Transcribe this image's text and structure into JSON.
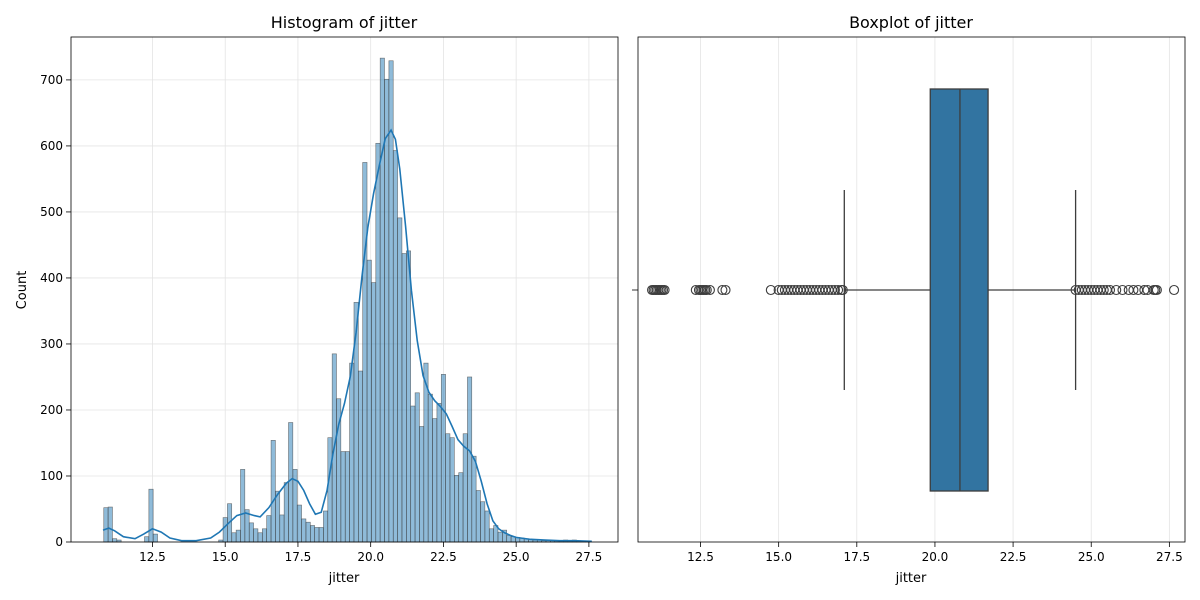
{
  "chart_data": [
    {
      "type": "bar",
      "title": "Histogram of jitter",
      "xlabel": "jitter",
      "ylabel": "Count",
      "xlim": [
        9.7,
        28.5
      ],
      "ylim": [
        0,
        765
      ],
      "xticks": [
        "12.5",
        "15.0",
        "17.5",
        "20.0",
        "22.5",
        "25.0",
        "27.5"
      ],
      "yticks": [
        "0",
        "100",
        "200",
        "300",
        "400",
        "500",
        "600",
        "700"
      ],
      "grid": true,
      "bar_color": "#1f77b4",
      "bin_width": 0.148,
      "bins": [
        {
          "x": 10.9,
          "count": 52
        },
        {
          "x": 11.05,
          "count": 53
        },
        {
          "x": 11.2,
          "count": 5
        },
        {
          "x": 11.35,
          "count": 3
        },
        {
          "x": 12.3,
          "count": 8
        },
        {
          "x": 12.45,
          "count": 80
        },
        {
          "x": 12.6,
          "count": 12
        },
        {
          "x": 14.85,
          "count": 3
        },
        {
          "x": 15.0,
          "count": 37
        },
        {
          "x": 15.15,
          "count": 58
        },
        {
          "x": 15.3,
          "count": 14
        },
        {
          "x": 15.45,
          "count": 18
        },
        {
          "x": 15.6,
          "count": 110
        },
        {
          "x": 15.75,
          "count": 49
        },
        {
          "x": 15.9,
          "count": 29
        },
        {
          "x": 16.05,
          "count": 20
        },
        {
          "x": 16.2,
          "count": 14
        },
        {
          "x": 16.35,
          "count": 20
        },
        {
          "x": 16.5,
          "count": 40
        },
        {
          "x": 16.65,
          "count": 154
        },
        {
          "x": 16.8,
          "count": 77
        },
        {
          "x": 16.95,
          "count": 41
        },
        {
          "x": 17.1,
          "count": 90
        },
        {
          "x": 17.25,
          "count": 181
        },
        {
          "x": 17.4,
          "count": 110
        },
        {
          "x": 17.55,
          "count": 56
        },
        {
          "x": 17.7,
          "count": 35
        },
        {
          "x": 17.85,
          "count": 30
        },
        {
          "x": 18.0,
          "count": 25
        },
        {
          "x": 18.15,
          "count": 22
        },
        {
          "x": 18.3,
          "count": 22
        },
        {
          "x": 18.45,
          "count": 47
        },
        {
          "x": 18.6,
          "count": 158
        },
        {
          "x": 18.75,
          "count": 285
        },
        {
          "x": 18.9,
          "count": 217
        },
        {
          "x": 19.05,
          "count": 137
        },
        {
          "x": 19.2,
          "count": 137
        },
        {
          "x": 19.35,
          "count": 271
        },
        {
          "x": 19.5,
          "count": 363
        },
        {
          "x": 19.65,
          "count": 259
        },
        {
          "x": 19.8,
          "count": 575
        },
        {
          "x": 19.95,
          "count": 427
        },
        {
          "x": 20.1,
          "count": 393
        },
        {
          "x": 20.25,
          "count": 604
        },
        {
          "x": 20.4,
          "count": 733
        },
        {
          "x": 20.55,
          "count": 701
        },
        {
          "x": 20.7,
          "count": 729
        },
        {
          "x": 20.85,
          "count": 593
        },
        {
          "x": 21.0,
          "count": 491
        },
        {
          "x": 21.15,
          "count": 437
        },
        {
          "x": 21.3,
          "count": 441
        },
        {
          "x": 21.45,
          "count": 206
        },
        {
          "x": 21.6,
          "count": 226
        },
        {
          "x": 21.75,
          "count": 175
        },
        {
          "x": 21.9,
          "count": 271
        },
        {
          "x": 22.05,
          "count": 224
        },
        {
          "x": 22.2,
          "count": 187
        },
        {
          "x": 22.35,
          "count": 210
        },
        {
          "x": 22.5,
          "count": 254
        },
        {
          "x": 22.65,
          "count": 164
        },
        {
          "x": 22.8,
          "count": 158
        },
        {
          "x": 22.95,
          "count": 101
        },
        {
          "x": 23.1,
          "count": 105
        },
        {
          "x": 23.25,
          "count": 164
        },
        {
          "x": 23.4,
          "count": 250
        },
        {
          "x": 23.55,
          "count": 130
        },
        {
          "x": 23.7,
          "count": 78
        },
        {
          "x": 23.85,
          "count": 61
        },
        {
          "x": 24.0,
          "count": 47
        },
        {
          "x": 24.15,
          "count": 20
        },
        {
          "x": 24.3,
          "count": 25
        },
        {
          "x": 24.45,
          "count": 15
        },
        {
          "x": 24.6,
          "count": 18
        },
        {
          "x": 24.75,
          "count": 10
        },
        {
          "x": 24.9,
          "count": 8
        },
        {
          "x": 25.05,
          "count": 7
        },
        {
          "x": 25.2,
          "count": 6
        },
        {
          "x": 25.35,
          "count": 5
        },
        {
          "x": 25.5,
          "count": 4
        },
        {
          "x": 25.65,
          "count": 3
        },
        {
          "x": 25.8,
          "count": 3
        },
        {
          "x": 25.95,
          "count": 2
        },
        {
          "x": 26.1,
          "count": 2
        },
        {
          "x": 26.25,
          "count": 2
        },
        {
          "x": 26.4,
          "count": 2
        },
        {
          "x": 26.55,
          "count": 2
        },
        {
          "x": 26.7,
          "count": 3
        },
        {
          "x": 26.85,
          "count": 2
        },
        {
          "x": 27.0,
          "count": 3
        },
        {
          "x": 27.15,
          "count": 2
        },
        {
          "x": 27.3,
          "count": 1
        },
        {
          "x": 27.45,
          "count": 1
        }
      ],
      "kde": [
        {
          "x": 10.8,
          "y": 18
        },
        {
          "x": 11.0,
          "y": 21
        },
        {
          "x": 11.2,
          "y": 17
        },
        {
          "x": 11.5,
          "y": 8
        },
        {
          "x": 11.9,
          "y": 5
        },
        {
          "x": 12.2,
          "y": 12
        },
        {
          "x": 12.5,
          "y": 20
        },
        {
          "x": 12.8,
          "y": 15
        },
        {
          "x": 13.1,
          "y": 6
        },
        {
          "x": 13.5,
          "y": 2
        },
        {
          "x": 14.0,
          "y": 2
        },
        {
          "x": 14.5,
          "y": 6
        },
        {
          "x": 14.8,
          "y": 15
        },
        {
          "x": 15.1,
          "y": 28
        },
        {
          "x": 15.4,
          "y": 40
        },
        {
          "x": 15.7,
          "y": 44
        },
        {
          "x": 16.0,
          "y": 40
        },
        {
          "x": 16.2,
          "y": 38
        },
        {
          "x": 16.5,
          "y": 52
        },
        {
          "x": 16.8,
          "y": 72
        },
        {
          "x": 17.1,
          "y": 89
        },
        {
          "x": 17.3,
          "y": 96
        },
        {
          "x": 17.5,
          "y": 92
        },
        {
          "x": 17.7,
          "y": 78
        },
        {
          "x": 17.9,
          "y": 58
        },
        {
          "x": 18.1,
          "y": 42
        },
        {
          "x": 18.3,
          "y": 45
        },
        {
          "x": 18.5,
          "y": 78
        },
        {
          "x": 18.7,
          "y": 133
        },
        {
          "x": 18.9,
          "y": 178
        },
        {
          "x": 19.1,
          "y": 210
        },
        {
          "x": 19.3,
          "y": 251
        },
        {
          "x": 19.5,
          "y": 318
        },
        {
          "x": 19.7,
          "y": 402
        },
        {
          "x": 19.9,
          "y": 476
        },
        {
          "x": 20.1,
          "y": 528
        },
        {
          "x": 20.3,
          "y": 571
        },
        {
          "x": 20.5,
          "y": 611
        },
        {
          "x": 20.7,
          "y": 624
        },
        {
          "x": 20.85,
          "y": 610
        },
        {
          "x": 21.0,
          "y": 565
        },
        {
          "x": 21.2,
          "y": 478
        },
        {
          "x": 21.4,
          "y": 381
        },
        {
          "x": 21.6,
          "y": 305
        },
        {
          "x": 21.8,
          "y": 252
        },
        {
          "x": 22.0,
          "y": 227
        },
        {
          "x": 22.2,
          "y": 214
        },
        {
          "x": 22.4,
          "y": 205
        },
        {
          "x": 22.6,
          "y": 194
        },
        {
          "x": 22.8,
          "y": 175
        },
        {
          "x": 23.0,
          "y": 155
        },
        {
          "x": 23.2,
          "y": 145
        },
        {
          "x": 23.4,
          "y": 138
        },
        {
          "x": 23.6,
          "y": 122
        },
        {
          "x": 23.8,
          "y": 92
        },
        {
          "x": 24.0,
          "y": 58
        },
        {
          "x": 24.2,
          "y": 32
        },
        {
          "x": 24.4,
          "y": 20
        },
        {
          "x": 24.6,
          "y": 14
        },
        {
          "x": 24.8,
          "y": 10
        },
        {
          "x": 25.0,
          "y": 7
        },
        {
          "x": 25.5,
          "y": 4
        },
        {
          "x": 26.0,
          "y": 3
        },
        {
          "x": 26.5,
          "y": 2
        },
        {
          "x": 27.0,
          "y": 2
        },
        {
          "x": 27.6,
          "y": 1
        }
      ]
    },
    {
      "type": "box",
      "title": "Boxplot of jitter",
      "xlabel": "jitter",
      "xlim": [
        10.5,
        28.0
      ],
      "xticks": [
        "12.5",
        "15.0",
        "17.5",
        "20.0",
        "22.5",
        "25.0",
        "27.5"
      ],
      "grid": true,
      "box_color": "#3274a1",
      "q1": 19.85,
      "median": 20.8,
      "q3": 21.7,
      "whisker_low": 17.1,
      "whisker_high": 24.5,
      "outliers": [
        10.95,
        11.0,
        11.05,
        11.1,
        11.15,
        11.2,
        11.25,
        11.3,
        11.35,
        12.35,
        12.45,
        12.5,
        12.55,
        12.6,
        12.65,
        12.7,
        12.8,
        13.2,
        13.3,
        14.75,
        15.0,
        15.1,
        15.2,
        15.3,
        15.4,
        15.5,
        15.6,
        15.7,
        15.8,
        15.9,
        16.0,
        16.1,
        16.2,
        16.3,
        16.4,
        16.5,
        16.6,
        16.7,
        16.8,
        16.9,
        17.0,
        17.05,
        24.5,
        24.6,
        24.7,
        24.8,
        24.9,
        25.0,
        25.1,
        25.2,
        25.3,
        25.4,
        25.5,
        25.6,
        25.8,
        26.0,
        26.2,
        26.35,
        26.5,
        26.7,
        26.8,
        27.0,
        27.05,
        27.1,
        27.65
      ]
    }
  ]
}
